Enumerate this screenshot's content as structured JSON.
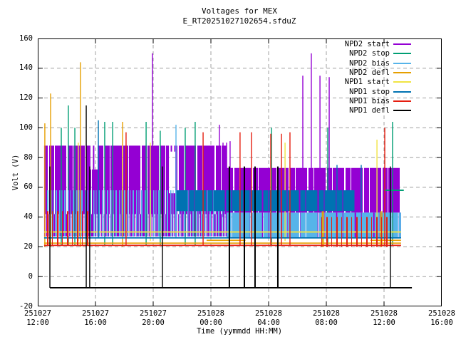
{
  "chart_data": {
    "type": "impulse-time-series",
    "title": "Voltages for MEX",
    "subtitle": "E_RT20251027102654.sfduZ",
    "xlabel": "Time (yymmdd HH:MM)",
    "ylabel": "Volt (V)",
    "ylim": [
      -20,
      160
    ],
    "yticks": [
      -20,
      0,
      20,
      40,
      60,
      80,
      100,
      120,
      140,
      160
    ],
    "xticks": [
      {
        "date": "251027",
        "time": "12:00"
      },
      {
        "date": "251027",
        "time": "16:00"
      },
      {
        "date": "251027",
        "time": "20:00"
      },
      {
        "date": "251028",
        "time": "00:00"
      },
      {
        "date": "251028",
        "time": "04:00"
      },
      {
        "date": "251028",
        "time": "08:00"
      },
      {
        "date": "251028",
        "time": "12:00"
      },
      {
        "date": "251028",
        "time": "16:00"
      }
    ],
    "x_hours_range": [
      0,
      28
    ],
    "hours_per_tick": 4,
    "grid": true,
    "grid_color": "#a0a0a0",
    "legend_position": "top-right",
    "series": [
      {
        "name": "NPD2 start",
        "color": "#9400D3",
        "spike_base": 40,
        "bands": [
          {
            "t0": 0.44,
            "t1": 3.65,
            "v0": 42,
            "v1": 88,
            "style": "dense"
          },
          {
            "t0": 3.65,
            "t1": 4.15,
            "v0": 42,
            "v1": 72,
            "style": "dense"
          },
          {
            "t0": 3.65,
            "t1": 4.15,
            "v0": 72,
            "v1": 88,
            "style": "vsparse"
          },
          {
            "t0": 4.15,
            "t1": 9.09,
            "v0": 42,
            "v1": 88,
            "style": "dense"
          },
          {
            "t0": 9.09,
            "t1": 9.53,
            "v0": 42,
            "v1": 56,
            "style": "dense"
          },
          {
            "t0": 9.09,
            "t1": 9.53,
            "v0": 84,
            "v1": 88,
            "style": "sparse"
          },
          {
            "t0": 9.53,
            "t1": 13.09,
            "v0": 42,
            "v1": 88,
            "style": "dense"
          },
          {
            "t0": 13.09,
            "t1": 25.18,
            "v0": 43,
            "v1": 73,
            "style": "dense"
          },
          {
            "t0": 0.44,
            "t1": 13.09,
            "v0": 27,
            "v1": 42,
            "style": "mid"
          },
          {
            "t0": 13.09,
            "t1": 25.18,
            "v0": 26,
            "v1": 43,
            "style": "mid"
          }
        ],
        "hlines": [],
        "spikes": [
          {
            "t": 7.95,
            "v": 150
          },
          {
            "t": 12.59,
            "v": 102
          },
          {
            "t": 12.84,
            "v": 90
          },
          {
            "t": 13.09,
            "v": 90
          },
          {
            "t": 13.33,
            "v": 91
          },
          {
            "t": 18.37,
            "v": 135
          },
          {
            "t": 18.96,
            "v": 150
          },
          {
            "t": 19.56,
            "v": 135
          },
          {
            "t": 20.2,
            "v": 134
          }
        ]
      },
      {
        "name": "NPD2 stop",
        "color": "#009E73",
        "spike_base": 21,
        "bands": [],
        "hlines": [
          {
            "t0": 24.0,
            "t1": 25.37,
            "v": 58
          }
        ],
        "spikes": [
          {
            "t": 1.63,
            "v": 100
          },
          {
            "t": 2.12,
            "v": 115
          },
          {
            "t": 2.57,
            "v": 100
          },
          {
            "t": 4.64,
            "v": 104
          },
          {
            "t": 5.19,
            "v": 104
          },
          {
            "t": 7.51,
            "v": 104
          },
          {
            "t": 8.49,
            "v": 98
          },
          {
            "t": 10.22,
            "v": 100
          },
          {
            "t": 10.91,
            "v": 104
          },
          {
            "t": 16.2,
            "v": 100
          },
          {
            "t": 20.1,
            "v": 100
          },
          {
            "t": 24.59,
            "v": 104
          }
        ]
      },
      {
        "name": "NPD2 bias",
        "color": "#56B4E9",
        "spike_base": 26,
        "bands": [
          {
            "t0": 0.44,
            "t1": 13.09,
            "v0": 27,
            "v1": 58,
            "style": "sparse"
          },
          {
            "t0": 13.09,
            "t1": 25.18,
            "v0": 26,
            "v1": 43,
            "style": "dense"
          }
        ],
        "hlines": [],
        "spikes": [
          {
            "t": 9.58,
            "v": 102
          }
        ]
      },
      {
        "name": "NPD2 defl",
        "color": "#E69F00",
        "spike_base": 20,
        "bands": [],
        "hlines": [
          {
            "t0": 0.44,
            "t1": 25.18,
            "v": 22.5
          },
          {
            "t0": 11.7,
            "t1": 14.4,
            "v": 24.4
          },
          {
            "t0": 23.06,
            "t1": 25.18,
            "v": 24.4
          }
        ],
        "spikes": [
          {
            "t": 0.49,
            "v": 103
          },
          {
            "t": 0.89,
            "v": 123
          },
          {
            "t": 2.96,
            "v": 144
          },
          {
            "t": 5.88,
            "v": 104
          },
          {
            "t": 19.72,
            "v": 44
          },
          {
            "t": 19.82,
            "v": 44
          },
          {
            "t": 23.75,
            "v": 44
          },
          {
            "t": 23.85,
            "v": 44
          }
        ]
      },
      {
        "name": "NPD1 start",
        "color": "#F0E442",
        "spike_base": 24,
        "bands": [],
        "hlines": [
          {
            "t0": 0.44,
            "t1": 25.18,
            "v": 30
          }
        ],
        "spikes": [
          {
            "t": 2.81,
            "v": 90
          },
          {
            "t": 7.8,
            "v": 90
          },
          {
            "t": 17.14,
            "v": 90
          },
          {
            "t": 23.51,
            "v": 92,
            "base": 31
          }
        ]
      },
      {
        "name": "NPD1 stop",
        "color": "#0072B2",
        "spike_base": 26,
        "bands": [
          {
            "t0": 9.58,
            "t1": 21.98,
            "v0": 44,
            "v1": 58,
            "style": "dense"
          }
        ],
        "hlines": [
          {
            "t0": 0.44,
            "t1": 25.18,
            "v": 26
          }
        ],
        "spikes": [
          {
            "t": 4.2,
            "v": 105
          },
          {
            "t": 20.74,
            "v": 75,
            "base": 44
          },
          {
            "t": 22.42,
            "v": 75,
            "base": 44
          }
        ]
      },
      {
        "name": "NPD1 bias",
        "color": "#E51E10",
        "spike_base": 21,
        "bands": [
          {
            "t0": 0.5,
            "t1": 3.7,
            "v0": 21,
            "v1": 44,
            "style": "vsparse"
          },
          {
            "t0": 19.6,
            "t1": 24.3,
            "v0": 20,
            "v1": 40,
            "style": "vsparse"
          }
        ],
        "hlines": [
          {
            "t0": 0.44,
            "t1": 25.18,
            "v": 21
          }
        ],
        "spikes": [
          {
            "t": 6.12,
            "v": 97
          },
          {
            "t": 11.46,
            "v": 97
          },
          {
            "t": 14.02,
            "v": 97
          },
          {
            "t": 14.81,
            "v": 97
          },
          {
            "t": 16.15,
            "v": 96
          },
          {
            "t": 16.89,
            "v": 96
          },
          {
            "t": 17.48,
            "v": 97
          },
          {
            "t": 24.05,
            "v": 100
          }
        ]
      },
      {
        "name": "NPD1 defl",
        "color": "#000000",
        "spike_base": -7.5,
        "bands": [],
        "hlines": [
          {
            "t0": 0.84,
            "t1": 25.93,
            "v": -7.5
          }
        ],
        "spikes": [
          {
            "t": 0.84,
            "v": 74
          },
          {
            "t": 3.36,
            "v": 115
          },
          {
            "t": 3.6,
            "v": 74
          },
          {
            "t": 8.64,
            "v": 74
          },
          {
            "t": 13.28,
            "v": 74,
            "w": 2
          },
          {
            "t": 14.32,
            "v": 74,
            "w": 2
          },
          {
            "t": 15.06,
            "v": 74,
            "w": 2
          },
          {
            "t": 16.64,
            "v": 74,
            "w": 2
          },
          {
            "t": 24.44,
            "v": 74
          }
        ]
      }
    ]
  }
}
